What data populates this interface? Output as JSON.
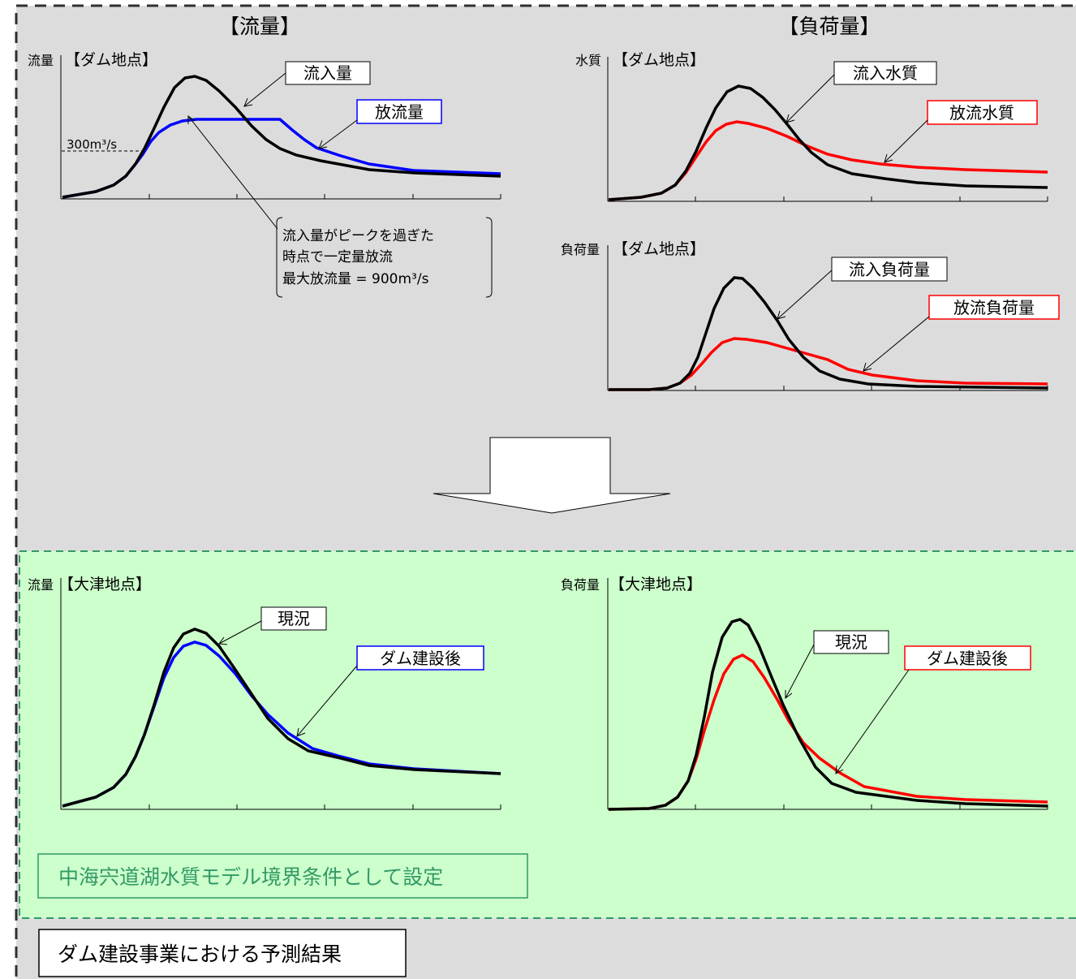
{
  "titles": {
    "flow": "【流量】",
    "load": "【負荷量】"
  },
  "colors": {
    "background": "#dcdcdc",
    "green_panel": "#ccffcc",
    "green_border": "#339966",
    "green_text": "#339966",
    "black": "#000000",
    "blue": "#0000ff",
    "red": "#ff0000"
  },
  "panels": {
    "dam_flow": {
      "ylabel": "流量",
      "station": "【ダム地点】",
      "ref_label": "300m³/s",
      "label_inflow": "流入量",
      "label_outflow": "放流量",
      "note_lines": [
        "流入量がピークを過ぎた",
        "時点で一定量放流",
        "最大放流量 = 900m³/s"
      ]
    },
    "dam_quality": {
      "ylabel": "水質",
      "station": "【ダム地点】",
      "label_inflow": "流入水質",
      "label_outflow": "放流水質"
    },
    "dam_load": {
      "ylabel": "負荷量",
      "station": "【ダム地点】",
      "label_inflow": "流入負荷量",
      "label_outflow": "放流負荷量"
    },
    "otsu_flow": {
      "ylabel": "流量",
      "station": "【大津地点】",
      "label_current": "現況",
      "label_after": "ダム建設後"
    },
    "otsu_load": {
      "ylabel": "負荷量",
      "station": "【大津地点】",
      "label_current": "現況",
      "label_after": "ダム建設後"
    }
  },
  "boundary_note": "中海宍道湖水質モデル境界条件として設定",
  "result_caption": "ダム建設事業における予測結果"
}
